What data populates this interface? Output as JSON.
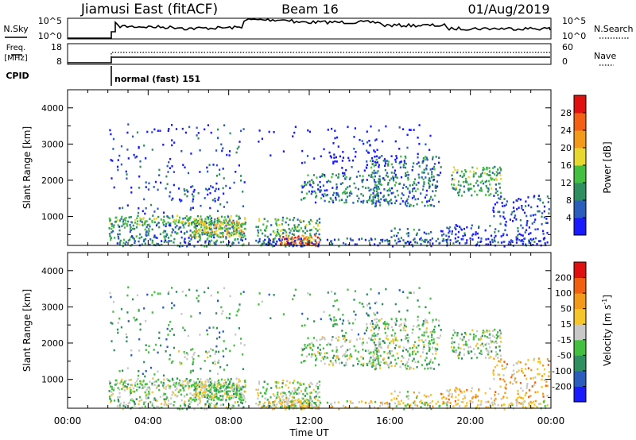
{
  "header": {
    "station": "Jiamusi East (fitACF)",
    "beam": "Beam 16",
    "date": "01/Aug/2019"
  },
  "status_rows": {
    "nsky": {
      "label": "N.Sky",
      "ticks": [
        "10^5",
        "10^0"
      ]
    },
    "freq": {
      "label1": "Freq.",
      "label2": "[MHz]",
      "ticks": [
        "18",
        "8"
      ]
    },
    "cpid": {
      "label": "CPID",
      "mode_text": "normal (fast) 151"
    },
    "nsearch": {
      "label": "N.Search",
      "ticks": [
        "10^5",
        "10^0"
      ]
    },
    "nave": {
      "label": "Nave",
      "ticks": [
        "60",
        "0"
      ]
    }
  },
  "colorbars": {
    "power": {
      "label": "Power [dB]",
      "ticks": [
        "4",
        "8",
        "12",
        "16",
        "20",
        "24",
        "28"
      ],
      "colors": [
        "#1a1aff",
        "#2b5dbd",
        "#2f8f5f",
        "#44c040",
        "#e8d72f",
        "#f39a1a",
        "#f36015",
        "#e01010"
      ]
    },
    "velocity": {
      "label": "Velocity [m s-1]",
      "label_main": "Velocity [m s",
      "label_sup": "-1",
      "label_end": "]",
      "ticks": [
        "200",
        "100",
        "50",
        "15",
        "-15",
        "-50",
        "-100",
        "-200"
      ],
      "colors": [
        "#1a1aff",
        "#2b5dbd",
        "#2f8f5f",
        "#44c040",
        "#c8c8c8",
        "#f5c52a",
        "#f39a1a",
        "#f06010",
        "#e01010"
      ]
    }
  },
  "chart_data": [
    {
      "type": "heatmap",
      "name": "power",
      "ylabel": "Slant Range [km]",
      "yticks": [
        "1000",
        "2000",
        "3000",
        "4000"
      ],
      "ylim": [
        200,
        4500
      ],
      "xlim": [
        0,
        24
      ],
      "xticks_hours": [
        0,
        4,
        8,
        12,
        16,
        20,
        24
      ],
      "data_start_hour": 2.0,
      "gap_hours": [
        [
          8.8,
          9.3
        ]
      ]
    },
    {
      "type": "heatmap",
      "name": "velocity",
      "ylabel": "Slant Range [km]",
      "yticks": [
        "1000",
        "2000",
        "3000",
        "4000"
      ],
      "ylim": [
        200,
        4500
      ],
      "xlim": [
        0,
        24
      ],
      "xticks_hours": [
        0,
        4,
        8,
        12,
        16,
        20,
        24
      ],
      "xtick_labels": [
        "00:00",
        "04:00",
        "08:00",
        "12:00",
        "16:00",
        "20:00",
        "00:00"
      ],
      "xlabel": "Time UT"
    }
  ]
}
